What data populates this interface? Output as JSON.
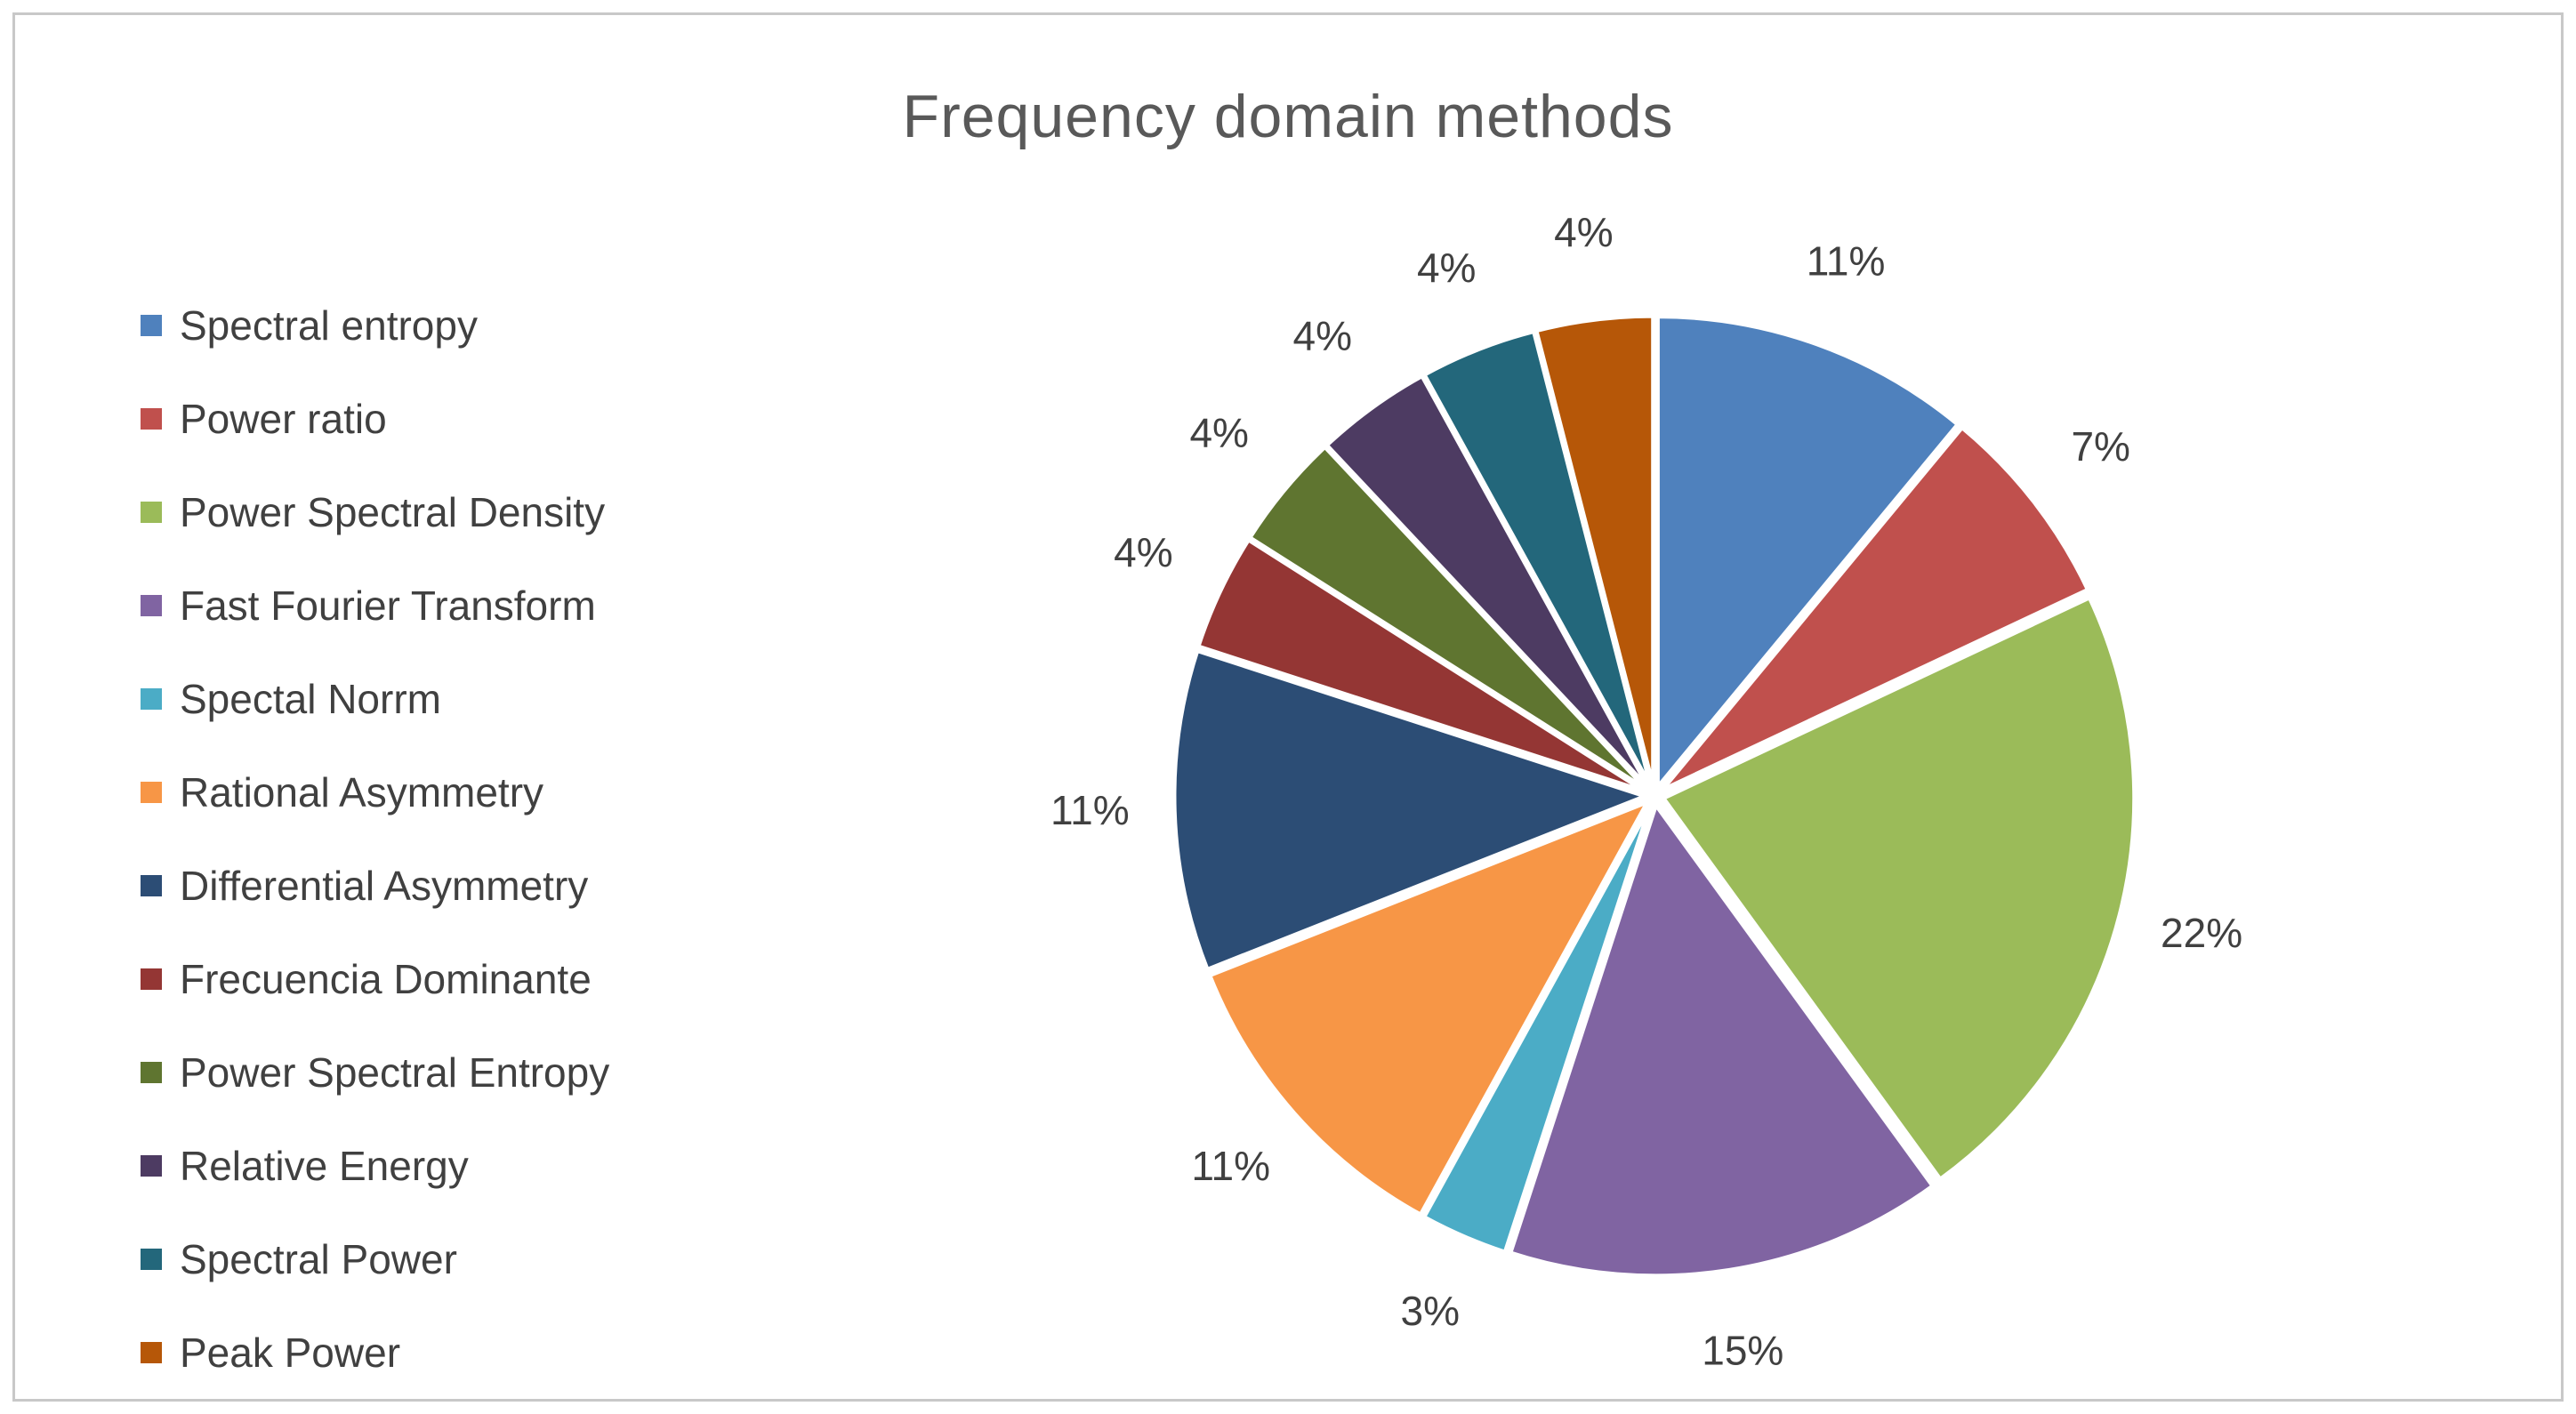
{
  "page": {
    "background_color": "#FFFFFF",
    "border_color": "#C8C8C8"
  },
  "chart_data": {
    "type": "pie",
    "title": "Frequency domain methods",
    "title_color": "#595959",
    "text_color": "#404040",
    "legend_position": "left",
    "direction": "clockwise",
    "start_angle_deg": 0,
    "slices": [
      {
        "label": "Spectral entropy",
        "value_pct": 11,
        "data_label": "11%",
        "color": "#4F81BD"
      },
      {
        "label": "Power ratio",
        "value_pct": 7,
        "data_label": "7%",
        "color": "#C0504D"
      },
      {
        "label": "Power Spectral Density",
        "value_pct": 22,
        "data_label": "22%",
        "color": "#9BBB59"
      },
      {
        "label": "Fast Fourier Transform",
        "value_pct": 15,
        "data_label": "15%",
        "color": "#8064A2"
      },
      {
        "label": "Spectal Norrm",
        "value_pct": 3,
        "data_label": "3%",
        "color": "#4BACC6"
      },
      {
        "label": "Rational Asymmetry",
        "value_pct": 11,
        "data_label": "11%",
        "color": "#F79646"
      },
      {
        "label": "Differential Asymmetry",
        "value_pct": 11,
        "data_label": "11%",
        "color": "#2C4D75"
      },
      {
        "label": "Frecuencia Dominante",
        "value_pct": 4,
        "data_label": "4%",
        "color": "#943634"
      },
      {
        "label": "Power Spectral Entropy",
        "value_pct": 4,
        "data_label": "4%",
        "color": "#5F7530"
      },
      {
        "label": "Relative Energy",
        "value_pct": 4,
        "data_label": "4%",
        "color": "#4D3B62"
      },
      {
        "label": "Spectral Power",
        "value_pct": 4,
        "data_label": "4%",
        "color": "#23677B"
      },
      {
        "label": "Peak Power",
        "value_pct": 4,
        "data_label": "4%",
        "color": "#B65708"
      }
    ]
  }
}
